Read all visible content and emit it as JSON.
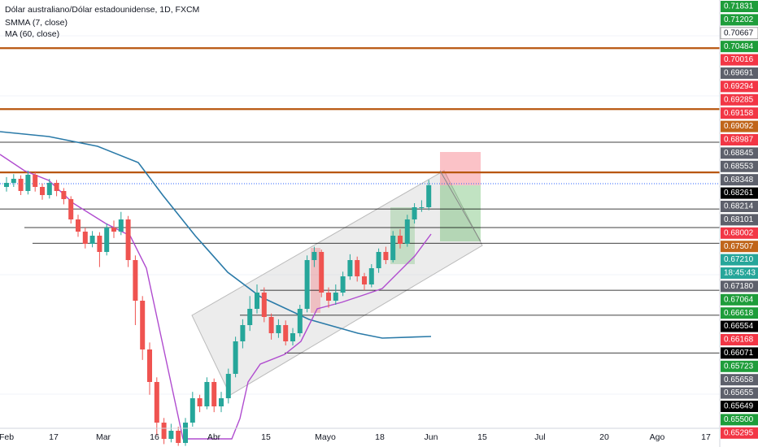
{
  "header": {
    "title": "Dólar australiano/Dólar estadounidense, 1D, FXCM",
    "indicators": [
      "SMMA (7, close)",
      "MA (60, close)"
    ]
  },
  "chart_data": {
    "type": "candlestick",
    "ylim": [
      0.638,
      0.715
    ],
    "up_color": "#26a69a",
    "down_color": "#ef5350",
    "candles": [
      [
        0.6828,
        0.6845,
        0.682,
        0.6835
      ],
      [
        0.6835,
        0.685,
        0.6828,
        0.6842
      ],
      [
        0.6842,
        0.6848,
        0.6814,
        0.6821
      ],
      [
        0.6821,
        0.6856,
        0.6815,
        0.6849
      ],
      [
        0.6849,
        0.6855,
        0.682,
        0.6828
      ],
      [
        0.6828,
        0.6834,
        0.6806,
        0.6814
      ],
      [
        0.6814,
        0.6842,
        0.6808,
        0.6835
      ],
      [
        0.6835,
        0.684,
        0.6812,
        0.6821
      ],
      [
        0.6821,
        0.6826,
        0.6798,
        0.6807
      ],
      [
        0.6807,
        0.6812,
        0.6765,
        0.6772
      ],
      [
        0.6772,
        0.678,
        0.6742,
        0.6751
      ],
      [
        0.6751,
        0.6758,
        0.6722,
        0.673
      ],
      [
        0.673,
        0.6752,
        0.6724,
        0.6744
      ],
      [
        0.6744,
        0.675,
        0.669,
        0.6716
      ],
      [
        0.6716,
        0.6765,
        0.671,
        0.6758
      ],
      [
        0.6758,
        0.677,
        0.674,
        0.6751
      ],
      [
        0.6751,
        0.6785,
        0.6745,
        0.6772
      ],
      [
        0.6772,
        0.6778,
        0.669,
        0.6702
      ],
      [
        0.6702,
        0.671,
        0.659,
        0.6632
      ],
      [
        0.6632,
        0.664,
        0.653,
        0.6548
      ],
      [
        0.6548,
        0.656,
        0.647,
        0.6492
      ],
      [
        0.6492,
        0.65,
        0.64,
        0.6422
      ],
      [
        0.6422,
        0.643,
        0.6385,
        0.6394
      ],
      [
        0.6394,
        0.642,
        0.6388,
        0.6408
      ],
      [
        0.6408,
        0.6415,
        0.6382,
        0.6387
      ],
      [
        0.6387,
        0.643,
        0.6382,
        0.6422
      ],
      [
        0.6422,
        0.6475,
        0.6415,
        0.6464
      ],
      [
        0.6464,
        0.647,
        0.644,
        0.645
      ],
      [
        0.645,
        0.65,
        0.6445,
        0.6492
      ],
      [
        0.6492,
        0.6498,
        0.644,
        0.645
      ],
      [
        0.645,
        0.6475,
        0.644,
        0.6464
      ],
      [
        0.6464,
        0.6515,
        0.6455,
        0.6506
      ],
      [
        0.6506,
        0.657,
        0.65,
        0.6562
      ],
      [
        0.6562,
        0.66,
        0.655,
        0.659
      ],
      [
        0.659,
        0.664,
        0.658,
        0.6618
      ],
      [
        0.6618,
        0.666,
        0.661,
        0.6646
      ],
      [
        0.6646,
        0.6655,
        0.6595,
        0.6604
      ],
      [
        0.6604,
        0.661,
        0.6565,
        0.6576
      ],
      [
        0.6576,
        0.66,
        0.6568,
        0.659
      ],
      [
        0.659,
        0.6598,
        0.6555,
        0.6562
      ],
      [
        0.6562,
        0.6585,
        0.6555,
        0.6576
      ],
      [
        0.6576,
        0.6625,
        0.657,
        0.6618
      ],
      [
        0.6618,
        0.671,
        0.6612,
        0.6702
      ],
      [
        0.6702,
        0.6725,
        0.669,
        0.6716
      ],
      [
        0.6716,
        0.672,
        0.6638,
        0.6646
      ],
      [
        0.6646,
        0.6655,
        0.662,
        0.6632
      ],
      [
        0.6632,
        0.666,
        0.6625,
        0.6646
      ],
      [
        0.6646,
        0.6682,
        0.664,
        0.6674
      ],
      [
        0.6674,
        0.6712,
        0.6668,
        0.6702
      ],
      [
        0.6702,
        0.6708,
        0.6665,
        0.6674
      ],
      [
        0.6674,
        0.668,
        0.665,
        0.666
      ],
      [
        0.666,
        0.6695,
        0.6655,
        0.6688
      ],
      [
        0.6688,
        0.6722,
        0.668,
        0.6716
      ],
      [
        0.6716,
        0.6725,
        0.6695,
        0.6702
      ],
      [
        0.6702,
        0.6752,
        0.6698,
        0.6744
      ],
      [
        0.6744,
        0.6755,
        0.6722,
        0.673
      ],
      [
        0.673,
        0.678,
        0.6725,
        0.6772
      ],
      [
        0.6772,
        0.68,
        0.6765,
        0.6793
      ],
      [
        0.6793,
        0.6805,
        0.6785,
        0.6793
      ],
      [
        0.6793,
        0.684,
        0.6788,
        0.6831
      ]
    ],
    "levels": [
      {
        "value": 0.7067,
        "color": "#b8560f"
      },
      {
        "value": 0.6962,
        "color": "#b8560f"
      },
      {
        "value": 0.6853,
        "color": "#b8560f"
      },
      {
        "value": 0.6905,
        "color": "#000000"
      },
      {
        "value": 0.679,
        "color": "#000000"
      },
      {
        "value": 0.6758,
        "color": "#000000"
      },
      {
        "value": 0.6731,
        "color": "#000000"
      },
      {
        "value": 0.665,
        "color": "#000000"
      },
      {
        "value": 0.6607,
        "color": "#000000"
      },
      {
        "value": 0.6542,
        "color": "#000000"
      }
    ]
  },
  "price_labels": [
    {
      "text": "0.71831",
      "color": "#1e9d3a"
    },
    {
      "text": "0.71202",
      "color": "#1e9d3a"
    },
    {
      "text": "0.70667",
      "color": "#ffffff"
    },
    {
      "text": "0.70484",
      "color": "#1e9d3a"
    },
    {
      "text": "0.70016",
      "color": "#f23645"
    },
    {
      "text": "0.69691",
      "color": "#5d606b"
    },
    {
      "text": "0.69294",
      "color": "#f23645"
    },
    {
      "text": "0.69285",
      "color": "#f23645"
    },
    {
      "text": "0.69158",
      "color": "#f23645"
    },
    {
      "text": "0.69092",
      "color": "#c0651a"
    },
    {
      "text": "0.68987",
      "color": "#f23645"
    },
    {
      "text": "0.68845",
      "color": "#5d606b"
    },
    {
      "text": "0.68553",
      "color": "#5d606b"
    },
    {
      "text": "0.68348",
      "color": "#5d606b"
    },
    {
      "text": "0.68261",
      "color": "#000000"
    },
    {
      "text": "0.68214",
      "color": "#5d606b"
    },
    {
      "text": "0.68101",
      "color": "#5d606b"
    },
    {
      "text": "0.68002",
      "color": "#f23645"
    },
    {
      "text": "0.67507",
      "color": "#c0651a"
    },
    {
      "text": "0.67210",
      "color": "#26a69a"
    },
    {
      "text": "18:45:43",
      "color": "#26a69a"
    },
    {
      "text": "0.67180",
      "color": "#5d606b"
    },
    {
      "text": "0.67064",
      "color": "#1e9d3a"
    },
    {
      "text": "0.66618",
      "color": "#1e9d3a"
    },
    {
      "text": "0.66554",
      "color": "#000000"
    },
    {
      "text": "0.66168",
      "color": "#f23645"
    },
    {
      "text": "0.66071",
      "color": "#000000"
    },
    {
      "text": "0.65723",
      "color": "#1e9d3a"
    },
    {
      "text": "0.65658",
      "color": "#5d606b"
    },
    {
      "text": "0.65655",
      "color": "#5d606b"
    },
    {
      "text": "0.65649",
      "color": "#000000"
    },
    {
      "text": "0.65500",
      "color": "#1e9d3a"
    },
    {
      "text": "0.65295",
      "color": "#f23645"
    }
  ],
  "time_labels": [
    "Feb",
    "17",
    "Mar",
    "16",
    "Abr",
    "15",
    "Mayo",
    "18",
    "Jun",
    "15",
    "Jul",
    "20",
    "Ago",
    "17"
  ]
}
